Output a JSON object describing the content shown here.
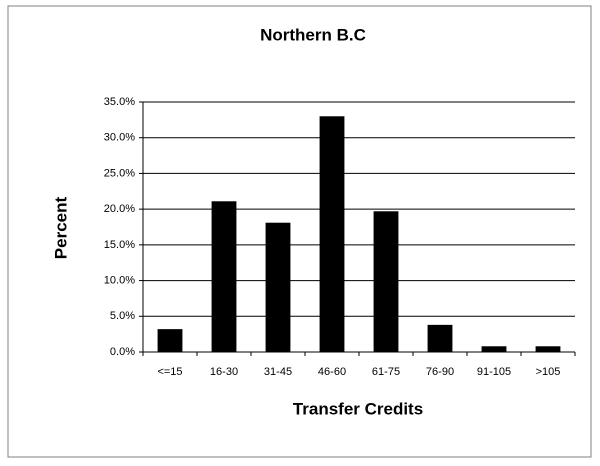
{
  "chart_data": {
    "type": "bar",
    "title": "Northern B.C",
    "y_label": "Percent",
    "x_label": "Transfer Credits",
    "categories": [
      "<=15",
      "16-30",
      "31-45",
      "46-60",
      "61-75",
      "76-90",
      "91-105",
      ">105"
    ],
    "values": [
      3.2,
      21.1,
      18.1,
      33.0,
      19.7,
      3.8,
      0.8,
      0.8
    ],
    "color": "#000000",
    "ylim": [
      0,
      35
    ],
    "yticks": [
      {
        "value": 0,
        "label": "0.0%"
      },
      {
        "value": 5,
        "label": "5.0%"
      },
      {
        "value": 10,
        "label": "10.0%"
      },
      {
        "value": 15,
        "label": "15.0%"
      },
      {
        "value": 20,
        "label": "20.0%"
      },
      {
        "value": 25,
        "label": "25.0%"
      },
      {
        "value": 30,
        "label": "30.0%"
      },
      {
        "value": 35,
        "label": "35.0%"
      }
    ],
    "grid": true
  }
}
